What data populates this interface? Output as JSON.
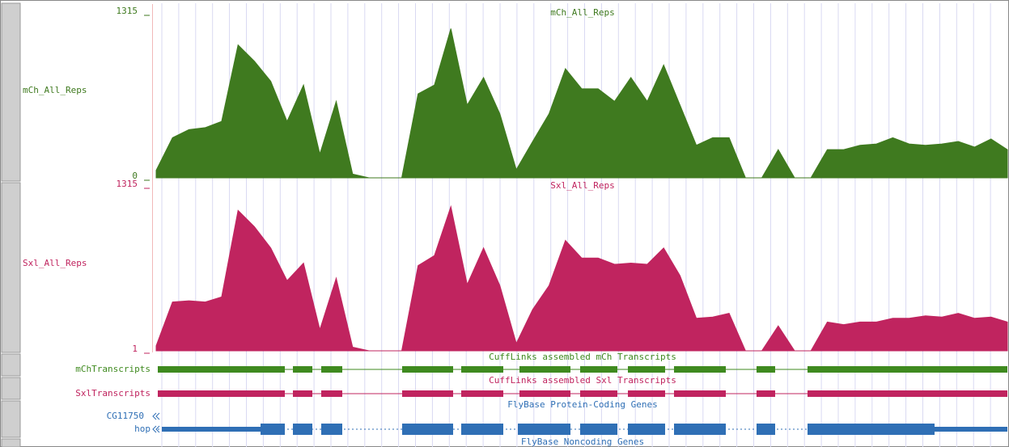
{
  "chart_data": [
    {
      "type": "area",
      "title": "mCh_All_Reps",
      "ylim": [
        0,
        1315
      ],
      "yticks": [
        0,
        1315
      ],
      "series": [
        {
          "name": "mCh_All_Reps",
          "color": "#3f7a1f",
          "values": [
            60,
            320,
            385,
            400,
            450,
            1060,
            930,
            770,
            450,
            740,
            190,
            610,
            30,
            0,
            0,
            0,
            670,
            740,
            1190,
            580,
            800,
            510,
            65,
            290,
            510,
            870,
            710,
            710,
            610,
            800,
            610,
            900,
            580,
            260,
            320,
            320,
            0,
            0,
            225,
            0,
            0,
            225,
            225,
            260,
            270,
            320,
            270,
            260,
            270,
            290,
            245,
            310,
            225
          ]
        }
      ]
    },
    {
      "type": "area",
      "title": "Sxl_All_Reps",
      "ylim": [
        1,
        1315
      ],
      "yticks": [
        1,
        1315
      ],
      "series": [
        {
          "name": "Sxl_All_Reps",
          "color": "#c0245f",
          "values": [
            40,
            390,
            400,
            390,
            430,
            1120,
            990,
            820,
            560,
            700,
            170,
            580,
            30,
            1,
            1,
            1,
            680,
            760,
            1150,
            530,
            820,
            520,
            60,
            330,
            520,
            880,
            740,
            740,
            690,
            700,
            690,
            820,
            600,
            260,
            270,
            300,
            1,
            1,
            200,
            1,
            1,
            230,
            210,
            230,
            230,
            260,
            260,
            280,
            270,
            300,
            260,
            270,
            230
          ]
        }
      ]
    }
  ],
  "tracks": [
    {
      "title": "CuffLinks assembled mCh Transcripts",
      "label": "mChTranscripts"
    },
    {
      "title": "CuffLinks assembled Sxl Transcripts",
      "label": "SxlTranscripts"
    },
    {
      "title": "FlyBase Protein-Coding Genes",
      "labels": [
        "CG11750",
        "hop"
      ]
    },
    {
      "title": "FlyBase Noncoding Genes"
    }
  ]
}
